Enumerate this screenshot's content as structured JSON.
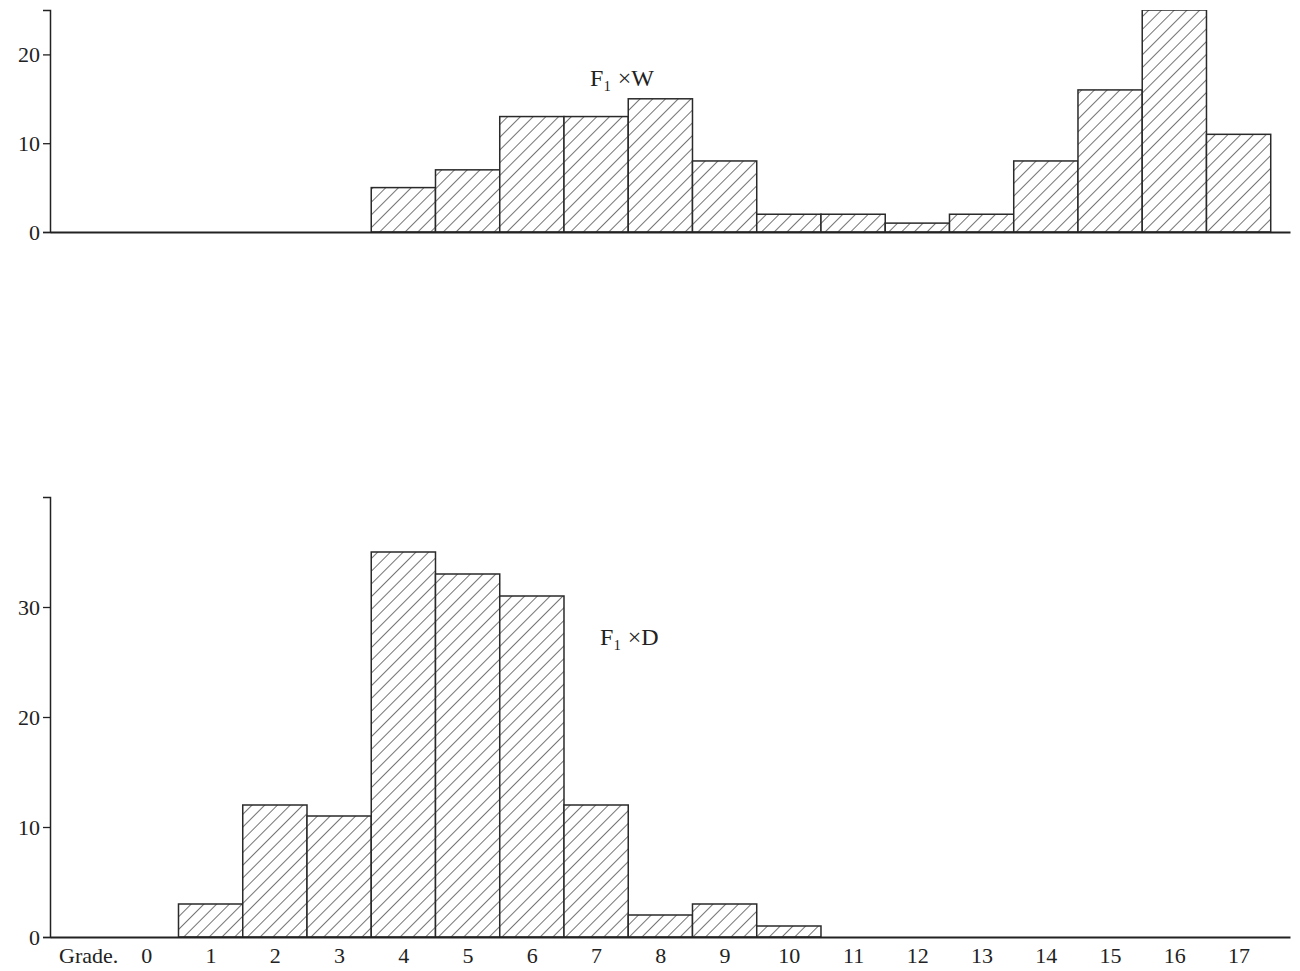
{
  "chart_data": [
    {
      "type": "histogram",
      "title": "F₁ ×W",
      "bins": [
        0.5,
        1.5,
        2.5,
        3.5,
        4.5,
        5.5,
        6.5,
        7.5,
        8.5,
        9.5,
        10.5,
        11.5,
        12.5,
        13.5,
        14.5,
        15.5,
        16.5,
        17.5
      ],
      "counts": [
        0,
        0,
        0,
        5,
        7,
        13,
        13,
        15,
        8,
        2,
        2,
        1,
        2,
        8,
        16,
        25,
        11
      ],
      "color": "#2a2a2a",
      "xlim": [
        -1.5,
        17.8
      ],
      "ylim": [
        0,
        25
      ],
      "yticks": [
        0,
        10,
        20
      ],
      "grid": false,
      "tick_labels": "y"
    },
    {
      "type": "histogram",
      "title": "F₁ ×D",
      "xlabel": "Grade.",
      "bins": [
        0.5,
        1.5,
        2.5,
        3.5,
        4.5,
        5.5,
        6.5,
        7.5,
        8.5,
        9.5,
        10.5,
        11.5,
        12.5,
        13.5,
        14.5,
        15.5,
        16.5,
        17.5
      ],
      "counts": [
        3,
        12,
        11,
        35,
        33,
        31,
        12,
        2,
        3,
        1,
        0,
        0,
        0,
        0,
        0,
        0,
        0
      ],
      "color": "#2a2a2a",
      "xlim": [
        -1.5,
        17.8
      ],
      "xticks": [
        0,
        1,
        2,
        3,
        4,
        5,
        6,
        7,
        8,
        9,
        10,
        11,
        12,
        13,
        14,
        15,
        16,
        17
      ],
      "ylim": [
        0,
        40
      ],
      "yticks": [
        0,
        10,
        20,
        30
      ],
      "grid": false
    }
  ]
}
